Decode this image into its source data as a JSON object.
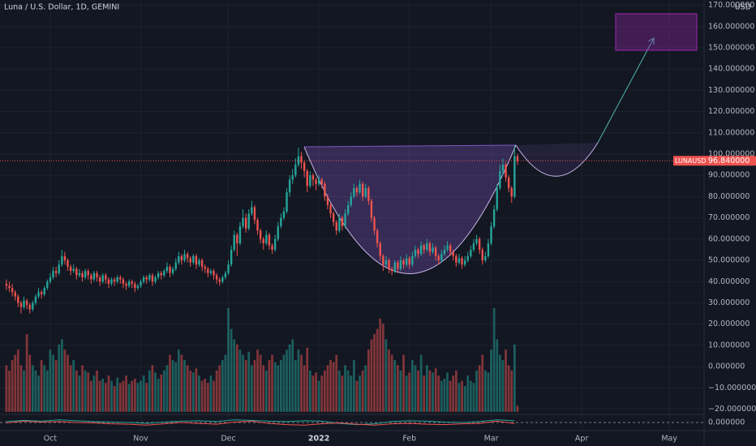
{
  "chart_data": {
    "type": "candlestick",
    "title": "Luna / U.S. Dollar, 1D, GEMINI",
    "currency": "USD",
    "up_color": "#26a69a",
    "down_color": "#ef5350",
    "symbol": "LUNAUSD",
    "last_price": {
      "value": 96.84,
      "label": "96.840000"
    },
    "xlim": [
      -2.2,
      238.9
    ],
    "xticks": [
      {
        "value": 15,
        "label": "Oct"
      },
      {
        "value": 46,
        "label": "Nov"
      },
      {
        "value": 76,
        "label": "Dec"
      },
      {
        "value": 107,
        "label": "2022"
      },
      {
        "value": 138,
        "label": "Feb"
      },
      {
        "value": 166,
        "label": "Mar"
      },
      {
        "value": 197,
        "label": "Apr"
      },
      {
        "value": 227,
        "label": "May"
      }
    ],
    "ylim": [
      -22.1,
      172.5
    ],
    "yticks": [
      {
        "value": 170,
        "label": "170.000000"
      },
      {
        "value": 160,
        "label": "160.000000"
      },
      {
        "value": 150,
        "label": "150.000000"
      },
      {
        "value": 140,
        "label": "140.000000"
      },
      {
        "value": 130,
        "label": "130.000000"
      },
      {
        "value": 120,
        "label": "120.000000"
      },
      {
        "value": 110,
        "label": "110.000000"
      },
      {
        "value": 100,
        "label": "100.000000"
      },
      {
        "value": 90,
        "label": "90.000000"
      },
      {
        "value": 80,
        "label": "80.000000"
      },
      {
        "value": 70,
        "label": "70.000000"
      },
      {
        "value": 60,
        "label": "60.000000"
      },
      {
        "value": 50,
        "label": "50.000000"
      },
      {
        "value": 40,
        "label": "40.000000"
      },
      {
        "value": 30,
        "label": "30.000000"
      },
      {
        "value": 20,
        "label": "20.000000"
      },
      {
        "value": 10,
        "label": "10.000000"
      },
      {
        "value": 0,
        "label": "0.000000"
      },
      {
        "value": -10,
        "label": "−10.000000"
      },
      {
        "value": -20,
        "label": "−20.000000"
      }
    ],
    "candles": [
      [
        39,
        41,
        36,
        38
      ],
      [
        38,
        40,
        35,
        37
      ],
      [
        37,
        39,
        33,
        35
      ],
      [
        35,
        36,
        31,
        33
      ],
      [
        33,
        34,
        28,
        30
      ],
      [
        30,
        31,
        25,
        28
      ],
      [
        28,
        33,
        27,
        31
      ],
      [
        31,
        32,
        27,
        29
      ],
      [
        29,
        30,
        25,
        27
      ],
      [
        27,
        31,
        26,
        30
      ],
      [
        30,
        34,
        29,
        33
      ],
      [
        33,
        37,
        32,
        35
      ],
      [
        35,
        36,
        32,
        34
      ],
      [
        34,
        38,
        33,
        37
      ],
      [
        37,
        41,
        36,
        40
      ],
      [
        40,
        44,
        39,
        42
      ],
      [
        42,
        47,
        41,
        45
      ],
      [
        45,
        47,
        42,
        44
      ],
      [
        44,
        50,
        43,
        48
      ],
      [
        48,
        55,
        47,
        52
      ],
      [
        52,
        54,
        48,
        50
      ],
      [
        50,
        51,
        45,
        47
      ],
      [
        47,
        48,
        43,
        45
      ],
      [
        45,
        48,
        44,
        46
      ],
      [
        46,
        47,
        41,
        43
      ],
      [
        43,
        46,
        42,
        44
      ],
      [
        44,
        45,
        40,
        42
      ],
      [
        42,
        46,
        41,
        45
      ],
      [
        45,
        46,
        41,
        43
      ],
      [
        43,
        44,
        39,
        41
      ],
      [
        41,
        45,
        40,
        44
      ],
      [
        44,
        45,
        40,
        42
      ],
      [
        42,
        43,
        38,
        40
      ],
      [
        40,
        44,
        39,
        43
      ],
      [
        43,
        44,
        39,
        41
      ],
      [
        41,
        42,
        37,
        39
      ],
      [
        39,
        42,
        38,
        41
      ],
      [
        41,
        42,
        38,
        40
      ],
      [
        40,
        43,
        39,
        42
      ],
      [
        42,
        43,
        39,
        41
      ],
      [
        41,
        42,
        37,
        39
      ],
      [
        39,
        40,
        36,
        38
      ],
      [
        38,
        41,
        37,
        40
      ],
      [
        40,
        41,
        37,
        39
      ],
      [
        39,
        40,
        35,
        37
      ],
      [
        37,
        39,
        36,
        38
      ],
      [
        38,
        41,
        37,
        40
      ],
      [
        40,
        43,
        39,
        42
      ],
      [
        42,
        43,
        39,
        41
      ],
      [
        41,
        44,
        40,
        43
      ],
      [
        43,
        44,
        38,
        40
      ],
      [
        40,
        43,
        39,
        42
      ],
      [
        42,
        45,
        41,
        44
      ],
      [
        44,
        45,
        41,
        43
      ],
      [
        43,
        46,
        42,
        45
      ],
      [
        45,
        49,
        44,
        47
      ],
      [
        47,
        48,
        42,
        44
      ],
      [
        44,
        47,
        43,
        46
      ],
      [
        46,
        51,
        45,
        49
      ],
      [
        49,
        54,
        48,
        52
      ],
      [
        52,
        53,
        48,
        50
      ],
      [
        50,
        55,
        49,
        53
      ],
      [
        53,
        54,
        49,
        51
      ],
      [
        51,
        52,
        47,
        49
      ],
      [
        49,
        53,
        48,
        52
      ],
      [
        52,
        53,
        46,
        48
      ],
      [
        48,
        51,
        47,
        50
      ],
      [
        50,
        51,
        45,
        47
      ],
      [
        47,
        48,
        44,
        46
      ],
      [
        46,
        47,
        42,
        44
      ],
      [
        44,
        46,
        43,
        45
      ],
      [
        45,
        46,
        41,
        43
      ],
      [
        43,
        44,
        39,
        41
      ],
      [
        41,
        42,
        38,
        40
      ],
      [
        40,
        43,
        39,
        42
      ],
      [
        42,
        45,
        41,
        44
      ],
      [
        44,
        50,
        43,
        48
      ],
      [
        48,
        57,
        47,
        55
      ],
      [
        55,
        64,
        54,
        62
      ],
      [
        62,
        63,
        52,
        58
      ],
      [
        58,
        68,
        57,
        66
      ],
      [
        66,
        74,
        65,
        70
      ],
      [
        70,
        72,
        63,
        65
      ],
      [
        65,
        74,
        64,
        72
      ],
      [
        72,
        78,
        71,
        75
      ],
      [
        75,
        76,
        67,
        69
      ],
      [
        69,
        70,
        62,
        64
      ],
      [
        64,
        65,
        58,
        60
      ],
      [
        60,
        61,
        55,
        58
      ],
      [
        58,
        64,
        57,
        62
      ],
      [
        62,
        63,
        55,
        57
      ],
      [
        57,
        58,
        53,
        55
      ],
      [
        55,
        62,
        54,
        60
      ],
      [
        60,
        68,
        59,
        66
      ],
      [
        66,
        72,
        65,
        70
      ],
      [
        70,
        75,
        69,
        73
      ],
      [
        73,
        84,
        72,
        82
      ],
      [
        82,
        90,
        80,
        88
      ],
      [
        88,
        93,
        86,
        90
      ],
      [
        90,
        98,
        89,
        95
      ],
      [
        95,
        103,
        94,
        99
      ],
      [
        99,
        101,
        93,
        96
      ],
      [
        96,
        97,
        89,
        92
      ],
      [
        92,
        93,
        82,
        85
      ],
      [
        85,
        92,
        84,
        90
      ],
      [
        90,
        91,
        85,
        88
      ],
      [
        88,
        89,
        83,
        86
      ],
      [
        86,
        90,
        85,
        88
      ],
      [
        88,
        89,
        84,
        86
      ],
      [
        86,
        87,
        78,
        80
      ],
      [
        80,
        81,
        74,
        76
      ],
      [
        76,
        77,
        70,
        72
      ],
      [
        72,
        73,
        66,
        68
      ],
      [
        68,
        69,
        62,
        64
      ],
      [
        64,
        72,
        63,
        70
      ],
      [
        70,
        71,
        64,
        66
      ],
      [
        66,
        74,
        65,
        72
      ],
      [
        72,
        78,
        71,
        76
      ],
      [
        76,
        82,
        75,
        80
      ],
      [
        80,
        86,
        79,
        84
      ],
      [
        84,
        85,
        80,
        82
      ],
      [
        82,
        88,
        81,
        86
      ],
      [
        86,
        87,
        78,
        80
      ],
      [
        80,
        86,
        79,
        84
      ],
      [
        84,
        85,
        76,
        78
      ],
      [
        78,
        79,
        68,
        70
      ],
      [
        70,
        71,
        62,
        64
      ],
      [
        64,
        65,
        56,
        58
      ],
      [
        58,
        59,
        50,
        52
      ],
      [
        52,
        53,
        45,
        48
      ],
      [
        48,
        52,
        47,
        50
      ],
      [
        50,
        51,
        44,
        46
      ],
      [
        46,
        47,
        43,
        45
      ],
      [
        45,
        50,
        44,
        49
      ],
      [
        49,
        50,
        44,
        46
      ],
      [
        46,
        52,
        45,
        50
      ],
      [
        50,
        51,
        46,
        48
      ],
      [
        48,
        53,
        47,
        51
      ],
      [
        51,
        52,
        46,
        48
      ],
      [
        48,
        54,
        47,
        52
      ],
      [
        52,
        57,
        51,
        55
      ],
      [
        55,
        56,
        51,
        53
      ],
      [
        53,
        59,
        52,
        57
      ],
      [
        57,
        58,
        53,
        55
      ],
      [
        55,
        60,
        54,
        58
      ],
      [
        58,
        59,
        52,
        54
      ],
      [
        54,
        58,
        53,
        56
      ],
      [
        56,
        57,
        50,
        52
      ],
      [
        52,
        53,
        48,
        50
      ],
      [
        50,
        55,
        49,
        53
      ],
      [
        53,
        57,
        52,
        55
      ],
      [
        55,
        59,
        54,
        57
      ],
      [
        57,
        58,
        52,
        54
      ],
      [
        54,
        55,
        50,
        52
      ],
      [
        52,
        53,
        47,
        49
      ],
      [
        49,
        53,
        48,
        51
      ],
      [
        51,
        52,
        46,
        48
      ],
      [
        48,
        52,
        47,
        50
      ],
      [
        50,
        54,
        49,
        52
      ],
      [
        52,
        57,
        51,
        55
      ],
      [
        55,
        60,
        54,
        58
      ],
      [
        58,
        62,
        57,
        60
      ],
      [
        60,
        61,
        53,
        55
      ],
      [
        55,
        56,
        48,
        50
      ],
      [
        50,
        54,
        49,
        52
      ],
      [
        52,
        60,
        51,
        58
      ],
      [
        58,
        68,
        57,
        66
      ],
      [
        66,
        76,
        65,
        74
      ],
      [
        74,
        86,
        73,
        84
      ],
      [
        84,
        95,
        83,
        92
      ],
      [
        92,
        98,
        90,
        95
      ],
      [
        95,
        96,
        87,
        89
      ],
      [
        89,
        90,
        82,
        84
      ],
      [
        84,
        85,
        77,
        80
      ],
      [
        80,
        104,
        79,
        99
      ],
      [
        99,
        100,
        95,
        96.84
      ]
    ],
    "volume_lim": [
      0,
      100
    ],
    "volume": [
      45,
      40,
      50,
      55,
      60,
      45,
      40,
      75,
      55,
      45,
      40,
      35,
      50,
      45,
      40,
      60,
      55,
      50,
      65,
      70,
      60,
      55,
      45,
      50,
      40,
      35,
      45,
      40,
      38,
      30,
      35,
      40,
      30,
      32,
      28,
      35,
      30,
      25,
      33,
      28,
      30,
      35,
      27,
      30,
      32,
      28,
      30,
      35,
      28,
      40,
      45,
      38,
      32,
      36,
      40,
      45,
      55,
      50,
      48,
      60,
      55,
      50,
      45,
      40,
      38,
      42,
      35,
      30,
      32,
      28,
      35,
      30,
      40,
      45,
      50,
      55,
      100,
      80,
      70,
      65,
      60,
      55,
      50,
      58,
      45,
      50,
      60,
      55,
      45,
      40,
      50,
      55,
      48,
      45,
      50,
      55,
      60,
      65,
      70,
      50,
      60,
      55,
      45,
      62,
      40,
      35,
      38,
      30,
      35,
      40,
      45,
      50,
      48,
      55,
      40,
      35,
      45,
      40,
      35,
      50,
      30,
      35,
      40,
      45,
      60,
      70,
      75,
      80,
      90,
      85,
      70,
      60,
      55,
      50,
      45,
      40,
      55,
      35,
      38,
      50,
      45,
      40,
      55,
      35,
      45,
      40,
      38,
      42,
      35,
      30,
      32,
      38,
      30,
      35,
      40,
      28,
      30,
      25,
      35,
      30,
      28,
      40,
      45,
      55,
      40,
      38,
      60,
      100,
      70,
      55,
      50,
      60,
      45,
      40,
      65,
      6
    ],
    "indicator": {
      "x": [
        0,
        6,
        12,
        18,
        24,
        30,
        36,
        42,
        48,
        54,
        60,
        66,
        72,
        78,
        84,
        90,
        96,
        102,
        108,
        114,
        120,
        126,
        132,
        138,
        144,
        150,
        156,
        162,
        168,
        174
      ],
      "ylim": [
        -1.5,
        1.5
      ],
      "yticks": [
        {
          "value": 0,
          "label": "0.000000"
        }
      ],
      "series": [
        {
          "color": "#26a69a",
          "values": [
            0.2,
            0.5,
            0.3,
            0.6,
            0.4,
            0.2,
            0.1,
            0.0,
            -0.2,
            0.1,
            0.3,
            0.4,
            0.2,
            0.6,
            0.5,
            0.3,
            0.2,
            0.4,
            0.3,
            -0.2,
            -0.5,
            -0.3,
            0.2,
            0.4,
            0.3,
            0.1,
            0.0,
            0.2,
            0.6,
            0.4
          ]
        },
        {
          "color": "#ef5350",
          "values": [
            -0.1,
            0.3,
            0.1,
            0.2,
            0.0,
            -0.1,
            -0.3,
            -0.4,
            -0.6,
            -0.3,
            0.0,
            -0.2,
            -0.4,
            0.1,
            0.3,
            -0.2,
            -0.5,
            -0.6,
            -0.3,
            -0.1,
            -0.4,
            -0.6,
            -0.3,
            -0.2,
            -0.4,
            -0.5,
            -0.3,
            -0.2,
            0.3,
            -0.2
          ]
        }
      ]
    }
  }
}
